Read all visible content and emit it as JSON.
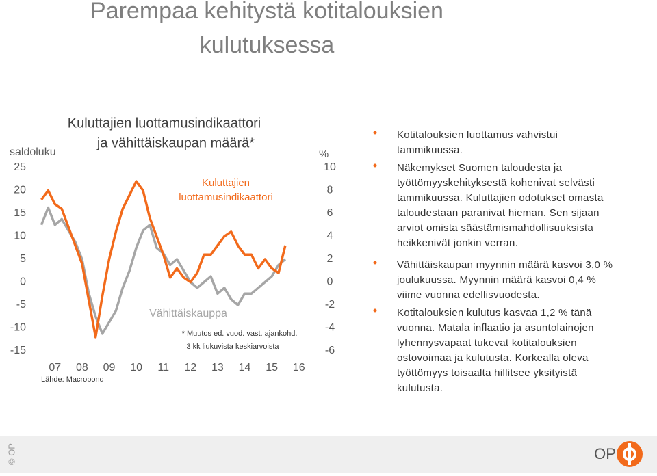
{
  "title": [
    "Parempaa kehitystä kotitalouksien",
    "kulutuksessa"
  ],
  "chart_data": {
    "type": "line",
    "title": [
      "Kuluttajien luottamusindikaattori",
      "ja vähittäiskaupan määrä*"
    ],
    "ylabel": "saldoluku",
    "y2label": "%",
    "xlim": [
      7,
      17
    ],
    "xticks": [
      {
        "value": 7.5,
        "label": "07"
      },
      {
        "value": 8.5,
        "label": "08"
      },
      {
        "value": 9.5,
        "label": "09"
      },
      {
        "value": 10.5,
        "label": "10"
      },
      {
        "value": 11.5,
        "label": "11"
      },
      {
        "value": 12.5,
        "label": "12"
      },
      {
        "value": 13.5,
        "label": "13"
      },
      {
        "value": 14.5,
        "label": "14"
      },
      {
        "value": 15.5,
        "label": "15"
      },
      {
        "value": 16.5,
        "label": "16"
      }
    ],
    "ylim": [
      -15,
      25
    ],
    "yticks": [
      25,
      20,
      15,
      10,
      5,
      0,
      -5,
      -10,
      -15
    ],
    "y2lim": [
      -6,
      10
    ],
    "y2ticks": [
      10,
      8,
      6,
      4,
      2,
      0,
      -2,
      -4,
      -6
    ],
    "x": [
      7,
      7.25,
      7.5,
      7.75,
      8,
      8.25,
      8.5,
      8.75,
      9,
      9.25,
      9.5,
      9.75,
      10,
      10.25,
      10.5,
      10.75,
      11,
      11.25,
      11.5,
      11.75,
      12,
      12.25,
      12.5,
      12.75,
      13,
      13.25,
      13.5,
      13.75,
      14,
      14.25,
      14.5,
      14.75,
      15,
      15.25,
      15.5,
      15.75,
      16
    ],
    "series": [
      {
        "name": "Vähittäiskauppa",
        "color": "#a6a6a6",
        "axis": "y2",
        "values": [
          5,
          6.5,
          5,
          5.5,
          4.5,
          3.5,
          2,
          -1,
          -3,
          -4.5,
          -3.5,
          -2.5,
          -0.5,
          1,
          3,
          4.5,
          5,
          3,
          2.5,
          1.5,
          2,
          1,
          0,
          -0.5,
          0,
          0.5,
          -1,
          -0.5,
          -1.5,
          -2,
          -1,
          -1,
          -0.5,
          0,
          0.5,
          1.5,
          2
        ]
      },
      {
        "name": "Kuluttajien luottamusindikaattori",
        "color": "#f26a1b",
        "values": [
          18,
          20,
          17,
          16,
          12,
          8,
          4,
          -4,
          -12,
          -3,
          5,
          11,
          16,
          19,
          22,
          20,
          14,
          10,
          6,
          1,
          3,
          1,
          0,
          2,
          6,
          6,
          8,
          10,
          11,
          8,
          6,
          6,
          3,
          5,
          3,
          2,
          8
        ]
      }
    ],
    "annotations": {
      "confidence": [
        "Kuluttajien",
        "luottamusindikaattori"
      ],
      "retail": "Vähittäiskauppa",
      "note": [
        "* Muutos ed. vuod. vast. ajankohd.",
        "3 kk liukuvista keskiarvoista"
      ],
      "source": "Lähde: Macrobond"
    }
  },
  "bullets": [
    [
      "Kotitalouksien luottamus vahvistui",
      "tammikuussa."
    ],
    [
      "Näkemykset Suomen taloudesta ja",
      "työttömyyskehityksestä kohenivat selvästi",
      "tammikuussa. Kuluttajien odotukset omasta",
      "taloudestaan paranivat hieman. Sen sijaan",
      "arviot omista säästämismahdollisuuksista",
      "heikkenivät jonkin verran."
    ],
    [
      "Vähittäiskaupan myynnin määrä kasvoi 3,0 %",
      "joulukuussa. Myynnin määrä kasvoi 0,4 %",
      "viime vuonna edellisvuodesta."
    ],
    [
      "Kotitalouksien kulutus kasvaa 1,2 % tänä",
      "vuonna. Matala inflaatio ja asuntolainojen",
      "lyhennysvapaat tukevat kotitalouksien",
      "ostovoimaa ja kulutusta. Korkealla oleva",
      "työttömyys toisaalta hillitsee yksityistä",
      "kulutusta."
    ]
  ],
  "footer": {
    "copyright": "© OP",
    "logo": "OP"
  }
}
